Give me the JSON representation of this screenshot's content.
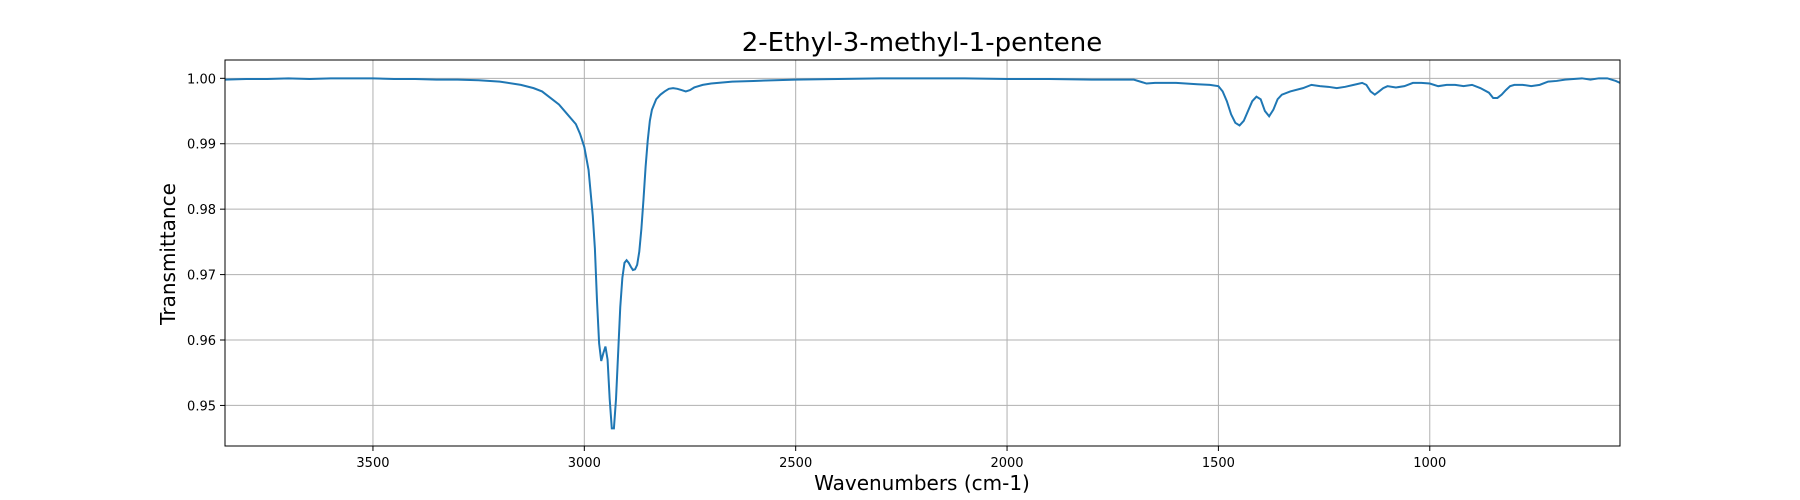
{
  "chart_data": {
    "type": "line",
    "title": "2-Ethyl-3-methyl-1-pentene",
    "xlabel": "Wavenumbers (cm-1)",
    "ylabel": "Transmittance",
    "xlim": [
      3850,
      550
    ],
    "ylim": [
      0.9438,
      1.0028
    ],
    "x_reversed": true,
    "grid": true,
    "line_color": "#1f77b4",
    "xticks": [
      3500,
      3000,
      2500,
      2000,
      1500,
      1000
    ],
    "xtick_labels": [
      "3500",
      "3000",
      "2500",
      "2000",
      "1500",
      "1000"
    ],
    "yticks": [
      0.95,
      0.96,
      0.97,
      0.98,
      0.99,
      1.0
    ],
    "ytick_labels": [
      "0.95",
      "0.96",
      "0.97",
      "0.98",
      "0.99",
      "1.00"
    ],
    "series": [
      {
        "x": [
          3850,
          3800,
          3750,
          3700,
          3650,
          3600,
          3550,
          3500,
          3450,
          3400,
          3350,
          3300,
          3250,
          3200,
          3150,
          3120,
          3100,
          3080,
          3060,
          3040,
          3020,
          3010,
          3000,
          2990,
          2980,
          2975,
          2970,
          2965,
          2960,
          2955,
          2950,
          2945,
          2940,
          2935,
          2930,
          2925,
          2920,
          2915,
          2910,
          2905,
          2900,
          2895,
          2890,
          2885,
          2880,
          2875,
          2870,
          2865,
          2860,
          2855,
          2850,
          2845,
          2840,
          2830,
          2820,
          2810,
          2800,
          2790,
          2780,
          2770,
          2760,
          2750,
          2740,
          2720,
          2700,
          2650,
          2600,
          2550,
          2500,
          2400,
          2300,
          2200,
          2100,
          2000,
          1900,
          1800,
          1750,
          1700,
          1680,
          1670,
          1650,
          1600,
          1550,
          1520,
          1500,
          1490,
          1480,
          1470,
          1460,
          1450,
          1440,
          1430,
          1420,
          1410,
          1400,
          1390,
          1380,
          1370,
          1360,
          1350,
          1330,
          1300,
          1280,
          1260,
          1240,
          1220,
          1200,
          1180,
          1160,
          1150,
          1140,
          1130,
          1120,
          1110,
          1100,
          1080,
          1060,
          1040,
          1020,
          1000,
          980,
          960,
          940,
          920,
          900,
          880,
          860,
          850,
          840,
          830,
          820,
          810,
          800,
          780,
          760,
          740,
          720,
          700,
          680,
          660,
          640,
          620,
          600,
          580,
          560,
          550
        ],
        "y": [
          0.9998,
          0.9999,
          0.9999,
          1.0,
          0.9999,
          1.0,
          1.0,
          1.0,
          0.9999,
          0.9999,
          0.9998,
          0.9998,
          0.9997,
          0.9995,
          0.999,
          0.9985,
          0.998,
          0.997,
          0.996,
          0.9945,
          0.993,
          0.9915,
          0.9895,
          0.986,
          0.979,
          0.974,
          0.966,
          0.9595,
          0.9568,
          0.958,
          0.959,
          0.957,
          0.951,
          0.9465,
          0.9465,
          0.951,
          0.958,
          0.965,
          0.9695,
          0.9718,
          0.9722,
          0.9718,
          0.9712,
          0.9707,
          0.9708,
          0.9715,
          0.9735,
          0.977,
          0.9815,
          0.9865,
          0.9905,
          0.9935,
          0.9952,
          0.9968,
          0.9975,
          0.998,
          0.9984,
          0.9985,
          0.9984,
          0.9982,
          0.998,
          0.9982,
          0.9986,
          0.999,
          0.9992,
          0.9995,
          0.9996,
          0.9997,
          0.9998,
          0.9999,
          1.0,
          1.0,
          1.0,
          0.9999,
          0.9999,
          0.9998,
          0.9998,
          0.9998,
          0.9994,
          0.9992,
          0.9993,
          0.9993,
          0.9991,
          0.999,
          0.9988,
          0.998,
          0.9965,
          0.9945,
          0.9932,
          0.9928,
          0.9935,
          0.995,
          0.9965,
          0.9972,
          0.9968,
          0.995,
          0.9942,
          0.9952,
          0.9968,
          0.9975,
          0.998,
          0.9985,
          0.999,
          0.9988,
          0.9987,
          0.9985,
          0.9987,
          0.999,
          0.9993,
          0.999,
          0.998,
          0.9975,
          0.998,
          0.9985,
          0.9988,
          0.9986,
          0.9988,
          0.9993,
          0.9993,
          0.9992,
          0.9988,
          0.999,
          0.999,
          0.9988,
          0.999,
          0.9985,
          0.9978,
          0.997,
          0.997,
          0.9975,
          0.9982,
          0.9988,
          0.999,
          0.999,
          0.9988,
          0.999,
          0.9995,
          0.9996,
          0.9998,
          0.9999,
          1.0,
          0.9998,
          1.0,
          1.0,
          0.9996,
          0.9993
        ]
      }
    ]
  }
}
